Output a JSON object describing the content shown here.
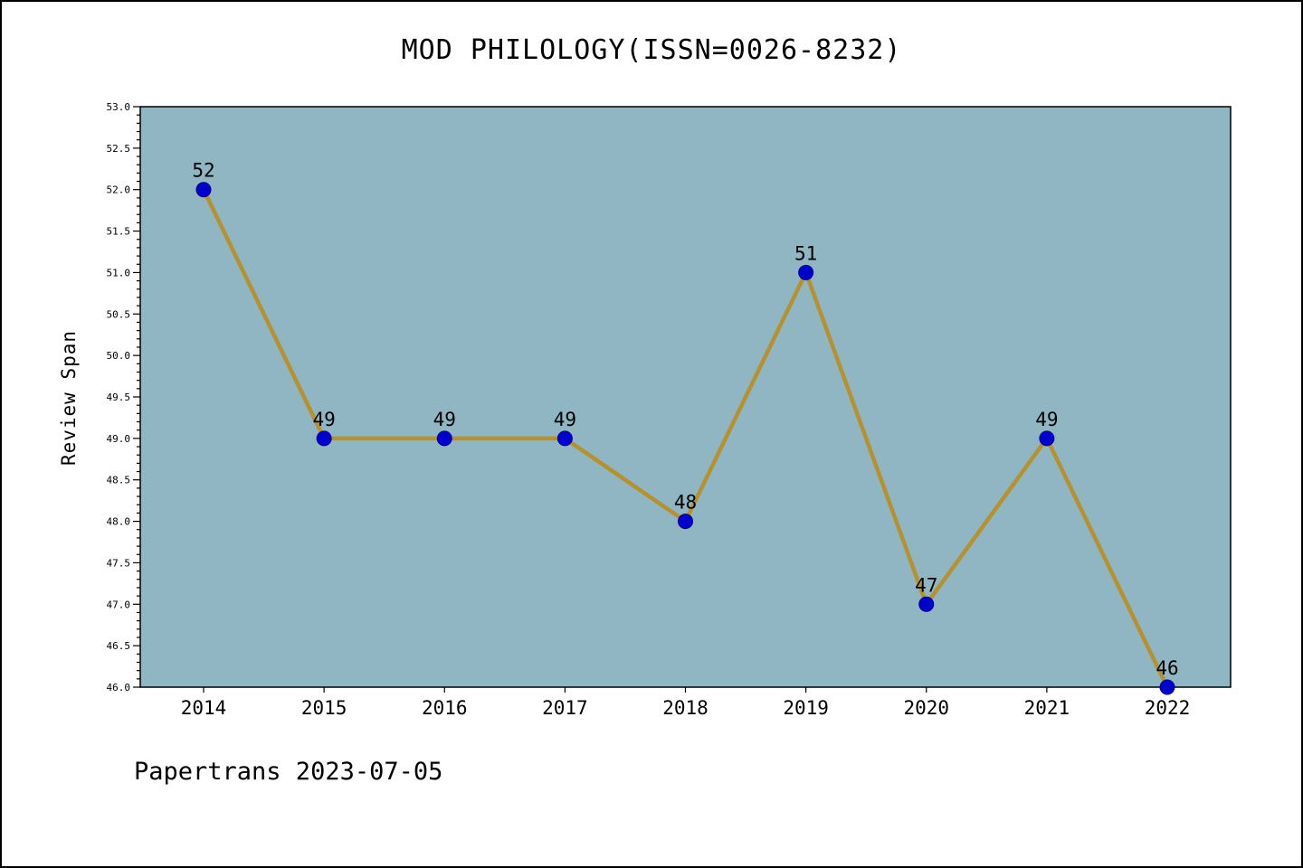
{
  "chart_data": {
    "type": "line",
    "title": "MOD PHILOLOGY(ISSN=0026-8232)",
    "xlabel": "",
    "ylabel": "Review Span",
    "categories": [
      "2014",
      "2015",
      "2016",
      "2017",
      "2018",
      "2019",
      "2020",
      "2021",
      "2022"
    ],
    "values": [
      52,
      49,
      49,
      49,
      48,
      51,
      47,
      49,
      46
    ],
    "point_labels": [
      "52",
      "49",
      "49",
      "49",
      "48",
      "51",
      "47",
      "49",
      "46"
    ],
    "ylim": [
      46.0,
      53.0
    ],
    "ytick_step": 0.5,
    "ytick_minor_step": 0.1,
    "ytick_labels": [
      "46.0",
      "46.5",
      "47.0",
      "47.5",
      "48.0",
      "48.5",
      "49.0",
      "49.5",
      "50.0",
      "50.5",
      "51.0",
      "51.5",
      "52.0",
      "52.5",
      "53.0"
    ],
    "grid": false,
    "legend": null,
    "colors": {
      "plot_bg": "#90b6c4",
      "line": "#b5912f",
      "marker": "#0000cd",
      "marker_edge": "#000080",
      "axis": "#000000",
      "text": "#000000",
      "page_bg": "#ffffff"
    },
    "footer": "Papertrans 2023-07-05"
  }
}
